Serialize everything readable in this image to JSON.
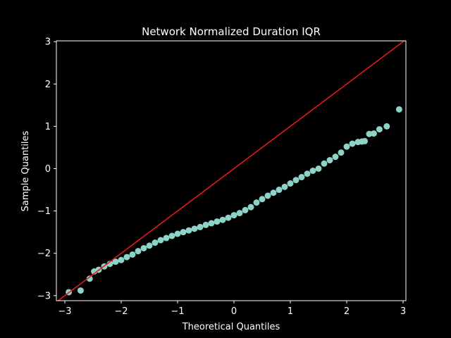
{
  "chart_data": {
    "type": "scatter",
    "title": "Network Normalized Duration IQR",
    "xlabel": "Theoretical Quantiles",
    "ylabel": "Sample Quantiles",
    "xlim": [
      -3.15,
      3.05
    ],
    "ylim": [
      -3.12,
      3.02
    ],
    "xticks": [
      -3,
      -2,
      -1,
      0,
      1,
      2,
      3
    ],
    "yticks": [
      -3,
      -2,
      -1,
      0,
      1,
      2,
      3
    ],
    "grid": false,
    "colors": {
      "background": "#000000",
      "axes": "#ffffff",
      "points": "#8dd3c7",
      "reference_line": "#e41a1c"
    },
    "series": [
      {
        "type": "scatter",
        "x": [
          -2.93,
          -2.72,
          -2.56,
          -2.48,
          -2.4,
          -2.3,
          -2.2,
          -2.1,
          -2.0,
          -1.9,
          -1.8,
          -1.7,
          -1.6,
          -1.5,
          -1.4,
          -1.3,
          -1.2,
          -1.1,
          -1.0,
          -0.9,
          -0.8,
          -0.7,
          -0.6,
          -0.5,
          -0.4,
          -0.3,
          -0.2,
          -0.1,
          0.0,
          0.1,
          0.2,
          0.3,
          0.4,
          0.5,
          0.6,
          0.7,
          0.8,
          0.9,
          1.0,
          1.1,
          1.2,
          1.3,
          1.4,
          1.5,
          1.6,
          1.7,
          1.8,
          1.9,
          2.0,
          2.1,
          2.2,
          2.27,
          2.32,
          2.4,
          2.48,
          2.58,
          2.71,
          2.93
        ],
        "y": [
          -2.92,
          -2.88,
          -2.6,
          -2.43,
          -2.39,
          -2.31,
          -2.25,
          -2.2,
          -2.16,
          -2.09,
          -2.03,
          -1.95,
          -1.88,
          -1.82,
          -1.75,
          -1.69,
          -1.64,
          -1.59,
          -1.54,
          -1.5,
          -1.46,
          -1.42,
          -1.38,
          -1.33,
          -1.29,
          -1.25,
          -1.21,
          -1.16,
          -1.1,
          -1.05,
          -0.98,
          -0.91,
          -0.8,
          -0.72,
          -0.64,
          -0.57,
          -0.5,
          -0.43,
          -0.35,
          -0.27,
          -0.2,
          -0.12,
          -0.05,
          0.0,
          0.12,
          0.2,
          0.28,
          0.38,
          0.52,
          0.59,
          0.63,
          0.64,
          0.65,
          0.82,
          0.83,
          0.93,
          1.0,
          1.4
        ]
      },
      {
        "type": "line",
        "x": [
          -3.15,
          3.05
        ],
        "y": [
          -3.15,
          3.05
        ]
      }
    ]
  }
}
